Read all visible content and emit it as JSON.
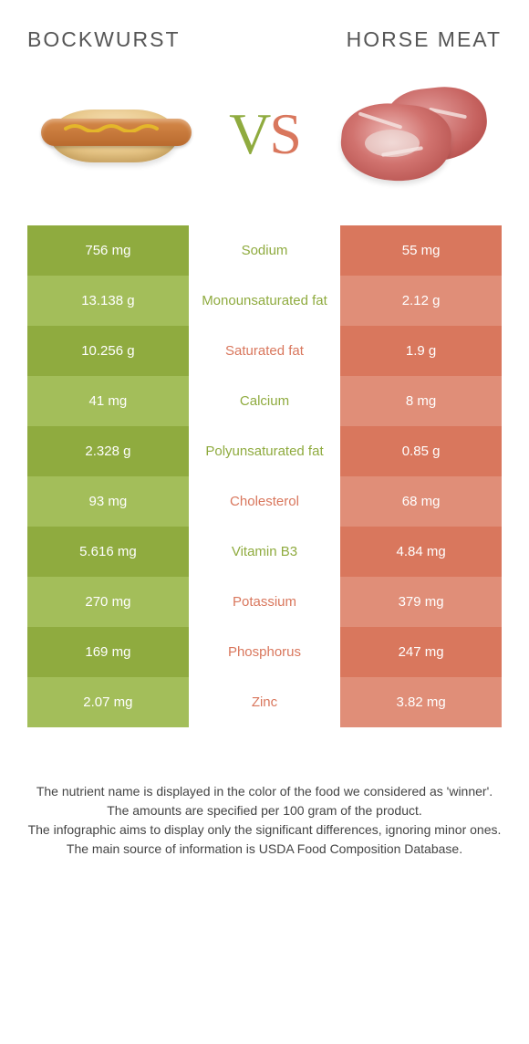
{
  "colors": {
    "green_dark": "#8fab3f",
    "green_light": "#a3be5a",
    "red_dark": "#d9775d",
    "red_light": "#e08e78",
    "text_green": "#8fab3f",
    "text_red": "#d9775d",
    "footer_text": "#444444"
  },
  "header": {
    "left_title": "Bockwurst",
    "right_title": "Horse meat",
    "vs_v": "V",
    "vs_s": "S"
  },
  "rows": [
    {
      "left": "756 mg",
      "label": "Sodium",
      "right": "55 mg",
      "winner": "left"
    },
    {
      "left": "13.138 g",
      "label": "Monounsaturated fat",
      "right": "2.12 g",
      "winner": "left"
    },
    {
      "left": "10.256 g",
      "label": "Saturated fat",
      "right": "1.9 g",
      "winner": "right"
    },
    {
      "left": "41 mg",
      "label": "Calcium",
      "right": "8 mg",
      "winner": "left"
    },
    {
      "left": "2.328 g",
      "label": "Polyunsaturated fat",
      "right": "0.85 g",
      "winner": "left"
    },
    {
      "left": "93 mg",
      "label": "Cholesterol",
      "right": "68 mg",
      "winner": "right"
    },
    {
      "left": "5.616 mg",
      "label": "Vitamin B3",
      "right": "4.84 mg",
      "winner": "left"
    },
    {
      "left": "270 mg",
      "label": "Potassium",
      "right": "379 mg",
      "winner": "right"
    },
    {
      "left": "169 mg",
      "label": "Phosphorus",
      "right": "247 mg",
      "winner": "right"
    },
    {
      "left": "2.07 mg",
      "label": "Zinc",
      "right": "3.82 mg",
      "winner": "right"
    }
  ],
  "footnotes": [
    "The nutrient name is displayed in the color of the food we considered as 'winner'.",
    "The amounts are specified per 100 gram of the product.",
    "The infographic aims to display only the significant differences, ignoring minor ones.",
    "The main source of information is USDA Food Composition Database."
  ]
}
